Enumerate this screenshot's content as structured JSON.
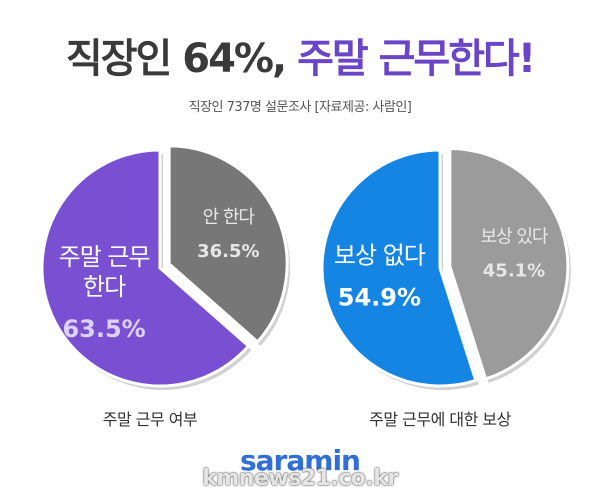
{
  "header": {
    "title_part1": "직장인 64%,",
    "title_part2": "주말 근무한다!",
    "subtitle": "직장인 737명 설문조사  [자료제공: 사람인]"
  },
  "chart_data": [
    {
      "type": "pie",
      "title": "주말 근무 여부",
      "slices": [
        {
          "label_lines": [
            "주말 근무",
            "한다"
          ],
          "value": 63.5,
          "value_label": "63.5%",
          "color": "#7950d2"
        },
        {
          "label_lines": [
            "안 한다"
          ],
          "value": 36.5,
          "value_label": "36.5%",
          "color": "#777777"
        }
      ]
    },
    {
      "type": "pie",
      "title": "주말 근무에 대한 보상",
      "slices": [
        {
          "label_lines": [
            "보상 없다"
          ],
          "value": 54.9,
          "value_label": "54.9%",
          "color": "#1585e3"
        },
        {
          "label_lines": [
            "보상 있다"
          ],
          "value": 45.1,
          "value_label": "45.1%",
          "color": "#9b9b9b"
        }
      ]
    }
  ],
  "footer": {
    "logo": "saramin",
    "watermark": "kmnews21.co.kr"
  }
}
